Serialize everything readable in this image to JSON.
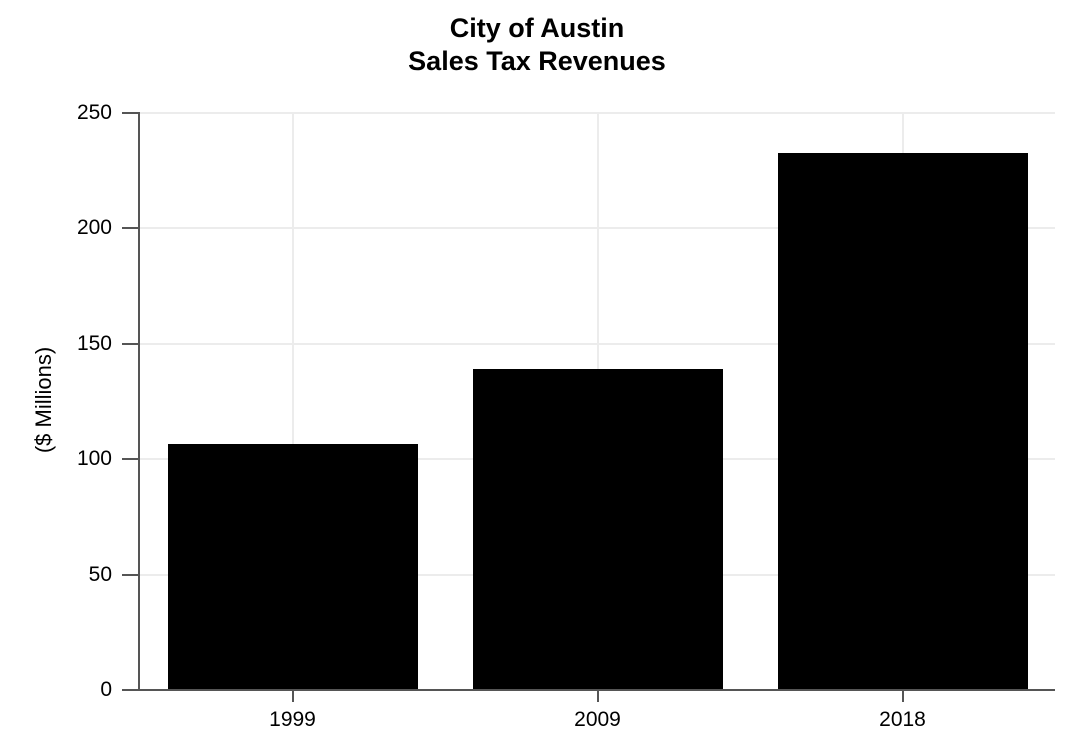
{
  "chart_data": {
    "type": "bar",
    "title": "City of Austin",
    "subtitle": "Sales Tax Revenues",
    "categories": [
      "1999",
      "2009",
      "2018"
    ],
    "values": [
      106.5,
      139,
      232.7
    ],
    "xlabel": "",
    "ylabel": "($ Millions)",
    "ylim": [
      0,
      250
    ],
    "yticks": [
      0,
      50,
      100,
      150,
      200,
      250
    ],
    "bar_color": "#000000",
    "gridline_color": "#ececec",
    "axis_color": "#555555",
    "background": "#ffffff",
    "grid": true,
    "legend": false
  }
}
